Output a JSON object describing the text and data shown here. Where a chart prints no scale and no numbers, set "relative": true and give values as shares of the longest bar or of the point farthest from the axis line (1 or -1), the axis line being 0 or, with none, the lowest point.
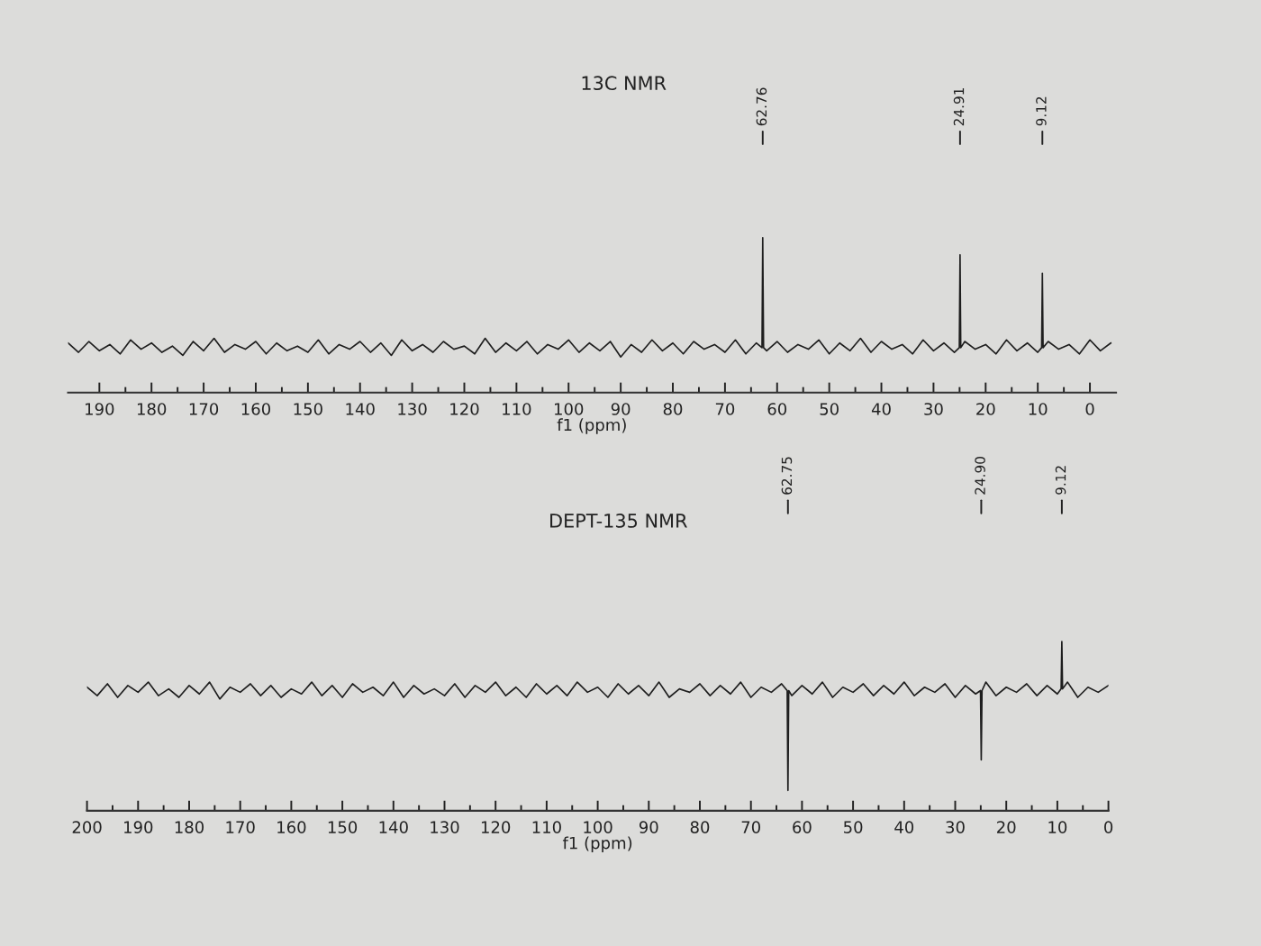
{
  "chart_data": [
    {
      "type": "line",
      "title": "13C NMR",
      "xlabel": "f1 (ppm)",
      "relative": true,
      "tick_labels": "x",
      "xlim": [
        196,
        -5
      ],
      "xticks": [
        190,
        {
          "value": 185,
          "label": null
        },
        180,
        {
          "value": 175,
          "label": null
        },
        170,
        {
          "value": 165,
          "label": null
        },
        160,
        {
          "value": 155,
          "label": null
        },
        150,
        {
          "value": 145,
          "label": null
        },
        140,
        {
          "value": 135,
          "label": null
        },
        130,
        {
          "value": 125,
          "label": null
        },
        120,
        {
          "value": 115,
          "label": null
        },
        110,
        {
          "value": 105,
          "label": null
        },
        100,
        {
          "value": 95,
          "label": null
        },
        90,
        {
          "value": 85,
          "label": null
        },
        80,
        {
          "value": 75,
          "label": null
        },
        70,
        {
          "value": 65,
          "label": null
        },
        60,
        {
          "value": 55,
          "label": null
        },
        50,
        {
          "value": 45,
          "label": null
        },
        40,
        {
          "value": 35,
          "label": null
        },
        30,
        {
          "value": 25,
          "label": null
        },
        20,
        {
          "value": 15,
          "label": null
        },
        10,
        {
          "value": 5,
          "label": null
        },
        0
      ],
      "series": [
        {
          "color": "#1e1e1e",
          "x": [
            196,
            194,
            192,
            190,
            188,
            186,
            184,
            182,
            180,
            178,
            176,
            174,
            172,
            170,
            168,
            166,
            164,
            162,
            160,
            158,
            156,
            154,
            152,
            150,
            148,
            146,
            144,
            142,
            140,
            138,
            136,
            134,
            132,
            130,
            128,
            126,
            124,
            122,
            120,
            118,
            116,
            114,
            112,
            110,
            108,
            106,
            104,
            102,
            100,
            98,
            96,
            94,
            92,
            90,
            88,
            86,
            84,
            82,
            80,
            78,
            76,
            74,
            72,
            70,
            68,
            66,
            64,
            62.9,
            62.76,
            62.6,
            62,
            60,
            58,
            56,
            54,
            52,
            50,
            48,
            46,
            44,
            42,
            40,
            38,
            36,
            34,
            32,
            30,
            28,
            26,
            25.05,
            24.91,
            24.77,
            24,
            22,
            20,
            18,
            16,
            14,
            12,
            10,
            9.26,
            9.12,
            8.98,
            8,
            6,
            4,
            2,
            0,
            -2,
            -4
          ],
          "values": [
            0.32,
            0.26,
            0.33,
            0.27,
            0.31,
            0.25,
            0.34,
            0.28,
            0.32,
            0.26,
            0.3,
            0.24,
            0.33,
            0.27,
            0.35,
            0.26,
            0.31,
            0.28,
            0.33,
            0.25,
            0.32,
            0.27,
            0.3,
            0.26,
            0.34,
            0.25,
            0.31,
            0.28,
            0.33,
            0.26,
            0.32,
            0.24,
            0.34,
            0.27,
            0.31,
            0.26,
            0.33,
            0.28,
            0.3,
            0.25,
            0.35,
            0.26,
            0.32,
            0.27,
            0.33,
            0.25,
            0.31,
            0.28,
            0.34,
            0.26,
            0.32,
            0.27,
            0.33,
            0.23,
            0.31,
            0.26,
            0.34,
            0.27,
            0.32,
            0.25,
            0.33,
            0.28,
            0.31,
            0.26,
            0.34,
            0.25,
            0.32,
            0.29,
            1,
            0.29,
            0.27,
            0.33,
            0.26,
            0.31,
            0.28,
            0.34,
            0.25,
            0.32,
            0.27,
            0.35,
            0.26,
            0.33,
            0.28,
            0.31,
            0.25,
            0.34,
            0.27,
            0.32,
            0.26,
            0.29,
            0.89,
            0.29,
            0.33,
            0.28,
            0.31,
            0.25,
            0.34,
            0.27,
            0.32,
            0.26,
            0.29,
            0.77,
            0.29,
            0.33,
            0.28,
            0.31,
            0.25,
            0.34,
            0.27,
            0.32
          ]
        }
      ],
      "annotations": [
        {
          "text": "62.76",
          "x": 62.76
        },
        {
          "text": "24.91",
          "x": 24.91
        },
        {
          "text": "9.12",
          "x": 9.12
        }
      ]
    },
    {
      "type": "line",
      "title": "DEPT-135 NMR",
      "xlabel": "f1 (ppm)",
      "relative": true,
      "tick_labels": "x",
      "xlim": [
        200,
        0
      ],
      "xticks": [
        200,
        {
          "value": 195,
          "label": null
        },
        190,
        {
          "value": 185,
          "label": null
        },
        180,
        {
          "value": 175,
          "label": null
        },
        170,
        {
          "value": 165,
          "label": null
        },
        160,
        {
          "value": 155,
          "label": null
        },
        150,
        {
          "value": 145,
          "label": null
        },
        140,
        {
          "value": 135,
          "label": null
        },
        130,
        {
          "value": 125,
          "label": null
        },
        120,
        {
          "value": 115,
          "label": null
        },
        110,
        {
          "value": 105,
          "label": null
        },
        100,
        {
          "value": 95,
          "label": null
        },
        90,
        {
          "value": 85,
          "label": null
        },
        80,
        {
          "value": 75,
          "label": null
        },
        70,
        {
          "value": 65,
          "label": null
        },
        60,
        {
          "value": 55,
          "label": null
        },
        50,
        {
          "value": 45,
          "label": null
        },
        40,
        {
          "value": 35,
          "label": null
        },
        30,
        {
          "value": 25,
          "label": null
        },
        20,
        {
          "value": 15,
          "label": null
        },
        10,
        {
          "value": 5,
          "label": null
        },
        0
      ],
      "series": [
        {
          "color": "#1e1e1e",
          "x": [
            200,
            198,
            196,
            194,
            192,
            190,
            188,
            186,
            184,
            182,
            180,
            178,
            176,
            174,
            172,
            170,
            168,
            166,
            164,
            162,
            160,
            158,
            156,
            154,
            152,
            150,
            148,
            146,
            144,
            142,
            140,
            138,
            136,
            134,
            132,
            130,
            128,
            126,
            124,
            122,
            120,
            118,
            116,
            114,
            112,
            110,
            108,
            106,
            104,
            102,
            100,
            98,
            96,
            94,
            92,
            90,
            88,
            86,
            84,
            82,
            80,
            78,
            76,
            74,
            72,
            70,
            68,
            66,
            64,
            62.9,
            62.75,
            62.6,
            62,
            60,
            58,
            56,
            54,
            52,
            50,
            48,
            46,
            44,
            42,
            40,
            38,
            36,
            34,
            32,
            30,
            28,
            26,
            25.05,
            24.9,
            24.75,
            24,
            22,
            20,
            18,
            16,
            14,
            12,
            10,
            9.26,
            9.12,
            8.98,
            8,
            6,
            4,
            2,
            0
          ],
          "values": [
            0.73,
            0.68,
            0.75,
            0.67,
            0.74,
            0.7,
            0.76,
            0.68,
            0.72,
            0.67,
            0.74,
            0.69,
            0.76,
            0.66,
            0.73,
            0.7,
            0.75,
            0.68,
            0.74,
            0.67,
            0.72,
            0.69,
            0.76,
            0.68,
            0.74,
            0.67,
            0.75,
            0.7,
            0.73,
            0.68,
            0.76,
            0.67,
            0.74,
            0.69,
            0.72,
            0.68,
            0.75,
            0.67,
            0.74,
            0.7,
            0.76,
            0.68,
            0.73,
            0.67,
            0.75,
            0.69,
            0.74,
            0.68,
            0.76,
            0.7,
            0.73,
            0.67,
            0.75,
            0.69,
            0.74,
            0.68,
            0.76,
            0.67,
            0.72,
            0.7,
            0.75,
            0.68,
            0.74,
            0.69,
            0.76,
            0.67,
            0.73,
            0.7,
            0.75,
            0.71,
            0.12,
            0.71,
            0.68,
            0.74,
            0.69,
            0.76,
            0.67,
            0.73,
            0.7,
            0.75,
            0.68,
            0.74,
            0.69,
            0.76,
            0.68,
            0.73,
            0.7,
            0.75,
            0.67,
            0.74,
            0.69,
            0.71,
            0.3,
            0.71,
            0.76,
            0.68,
            0.73,
            0.7,
            0.75,
            0.68,
            0.74,
            0.69,
            0.72,
            1,
            0.72,
            0.76,
            0.67,
            0.73,
            0.7,
            0.74
          ]
        }
      ],
      "annotations": [
        {
          "text": "62.75",
          "x": 62.75
        },
        {
          "text": "24.90",
          "x": 24.9
        },
        {
          "text": "9.12",
          "x": 9.12
        }
      ]
    }
  ]
}
